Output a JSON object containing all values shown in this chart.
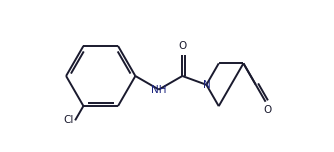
{
  "background_color": "#ffffff",
  "bond_color": "#1a1a2e",
  "nitrogen_color": "#1a237e",
  "oxygen_color": "#1a1a2e",
  "chlorine_color": "#1a1a2e",
  "line_width": 1.4,
  "fig_width": 3.34,
  "fig_height": 1.52,
  "dpi": 100,
  "xlim": [
    0.0,
    10.0
  ],
  "ylim": [
    2.5,
    7.5
  ]
}
